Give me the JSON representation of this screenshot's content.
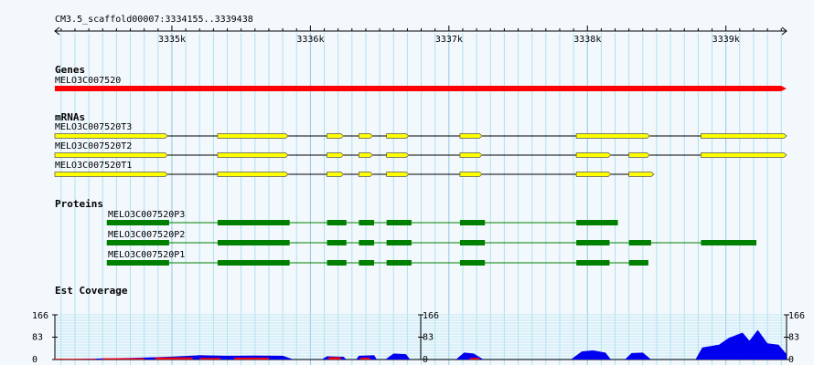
{
  "region": {
    "label": "CM3.5_scaffold00007:3334155..3339438",
    "start": 3334155,
    "end": 3339438
  },
  "ruler": {
    "ticks": [
      {
        "pos": 3335000,
        "label": "3335k"
      },
      {
        "pos": 3336000,
        "label": "3336k"
      },
      {
        "pos": 3337000,
        "label": "3337k"
      },
      {
        "pos": 3338000,
        "label": "3338k"
      },
      {
        "pos": 3339000,
        "label": "3339k"
      }
    ]
  },
  "tracks": {
    "genes": {
      "title": "Genes",
      "items": [
        {
          "name": "MELO3C007520",
          "start": 3334155,
          "end": 3339438,
          "color": "#ff0000"
        }
      ]
    },
    "mrnas": {
      "title": "mRNAs",
      "items": [
        {
          "name": "MELO3C007520T3",
          "exons": [
            [
              3334155,
              3334970
            ],
            [
              3335330,
              3335840
            ],
            [
              3336120,
              3336240
            ],
            [
              3336350,
              3336450
            ],
            [
              3336550,
              3336710
            ],
            [
              3337080,
              3337240
            ],
            [
              3337920,
              3338450
            ],
            [
              3338820,
              3339438
            ]
          ]
        },
        {
          "name": "MELO3C007520T2",
          "exons": [
            [
              3334155,
              3334970
            ],
            [
              3335330,
              3335840
            ],
            [
              3336120,
              3336240
            ],
            [
              3336350,
              3336450
            ],
            [
              3336550,
              3336710
            ],
            [
              3337080,
              3337240
            ],
            [
              3337920,
              3338170
            ],
            [
              3338300,
              3338450
            ],
            [
              3338820,
              3339438
            ]
          ]
        },
        {
          "name": "MELO3C007520T1",
          "exons": [
            [
              3334155,
              3334970
            ],
            [
              3335330,
              3335840
            ],
            [
              3336120,
              3336240
            ],
            [
              3336350,
              3336450
            ],
            [
              3336550,
              3336710
            ],
            [
              3337080,
              3337240
            ],
            [
              3337920,
              3338170
            ],
            [
              3338300,
              3338480
            ]
          ]
        }
      ]
    },
    "proteins": {
      "title": "Proteins",
      "items": [
        {
          "name": "MELO3C007520P3",
          "start": 3334530,
          "end": 3338220,
          "exons": [
            [
              3334530,
              3334980
            ],
            [
              3335330,
              3335850
            ],
            [
              3336120,
              3336260
            ],
            [
              3336350,
              3336460
            ],
            [
              3336550,
              3336730
            ],
            [
              3337080,
              3337260
            ],
            [
              3337920,
              3338220
            ]
          ]
        },
        {
          "name": "MELO3C007520P2",
          "start": 3334530,
          "end": 3339220,
          "exons": [
            [
              3334530,
              3334980
            ],
            [
              3335330,
              3335850
            ],
            [
              3336120,
              3336260
            ],
            [
              3336350,
              3336460
            ],
            [
              3336550,
              3336730
            ],
            [
              3337080,
              3337260
            ],
            [
              3337920,
              3338160
            ],
            [
              3338300,
              3338460
            ],
            [
              3338820,
              3339220
            ]
          ]
        },
        {
          "name": "MELO3C007520P1",
          "start": 3334530,
          "end": 3338440,
          "exons": [
            [
              3334530,
              3334980
            ],
            [
              3335330,
              3335850
            ],
            [
              3336120,
              3336260
            ],
            [
              3336350,
              3336460
            ],
            [
              3336550,
              3336730
            ],
            [
              3337080,
              3337260
            ],
            [
              3337920,
              3338160
            ],
            [
              3338300,
              3338440
            ]
          ]
        }
      ]
    },
    "est": {
      "title": "Est Coverage",
      "max": 166,
      "mid": 83,
      "min": 0,
      "colors": {
        "primary": "#0000ee",
        "secondary": "#ff0000"
      }
    }
  },
  "colors": {
    "bg": "#f3f8fd",
    "grid": "#aee0ee",
    "mrna": "#ffff00",
    "protein": "#008000"
  }
}
